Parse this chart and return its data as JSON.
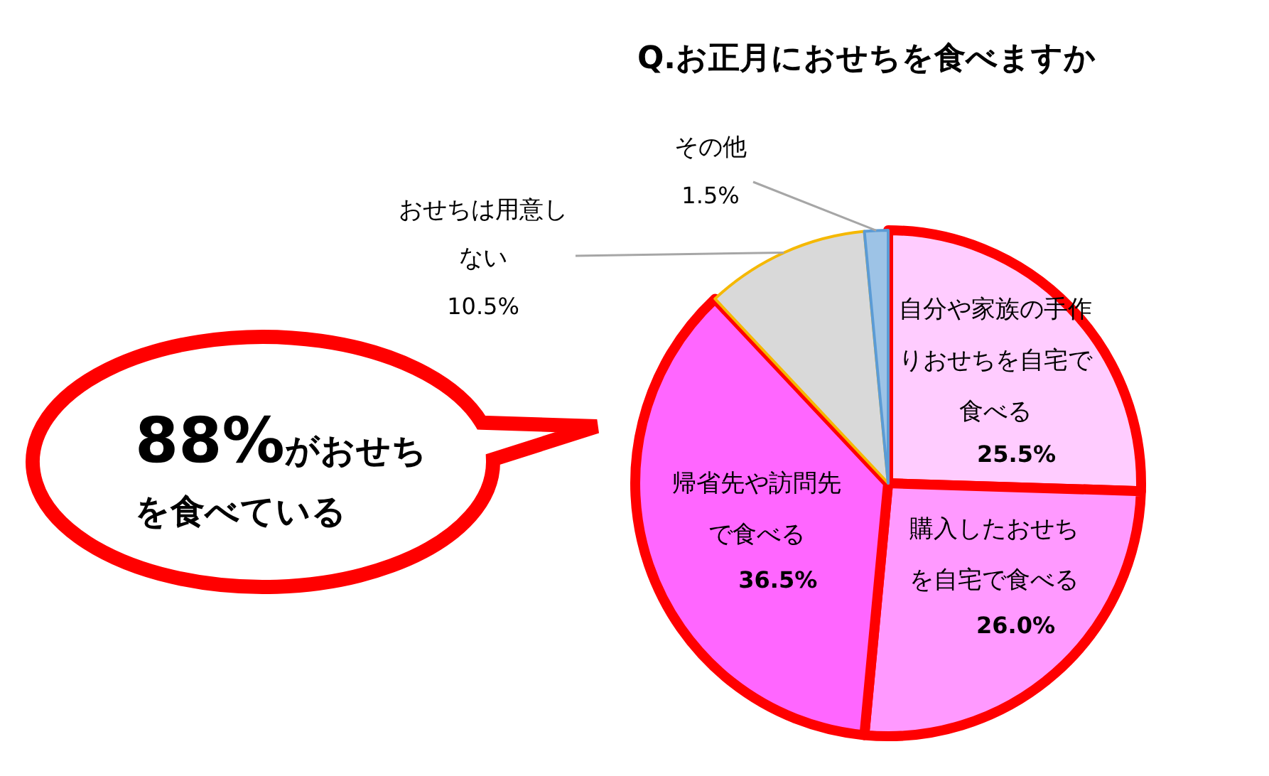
{
  "chart_data": {
    "type": "pie",
    "title": "Q.お正月におせちを食べますか",
    "categories": [
      "自分や家族の手作りおせちを自宅で食べる",
      "購入したおせちを自宅で食べる",
      "帰省先や訪問先で食べる",
      "おせちは用意しない",
      "その他"
    ],
    "values": [
      25.5,
      26.0,
      36.5,
      10.5,
      1.5
    ],
    "colors": [
      "#ffccff",
      "#ff99ff",
      "#ff66ff",
      "#d9d9d9",
      "#9dc3e6"
    ],
    "value_labels": [
      "25.5%",
      "26.0%",
      "36.5%",
      "10.5%",
      "1.5%"
    ],
    "annotations": [
      "88%がおせちを食べている"
    ]
  }
}
